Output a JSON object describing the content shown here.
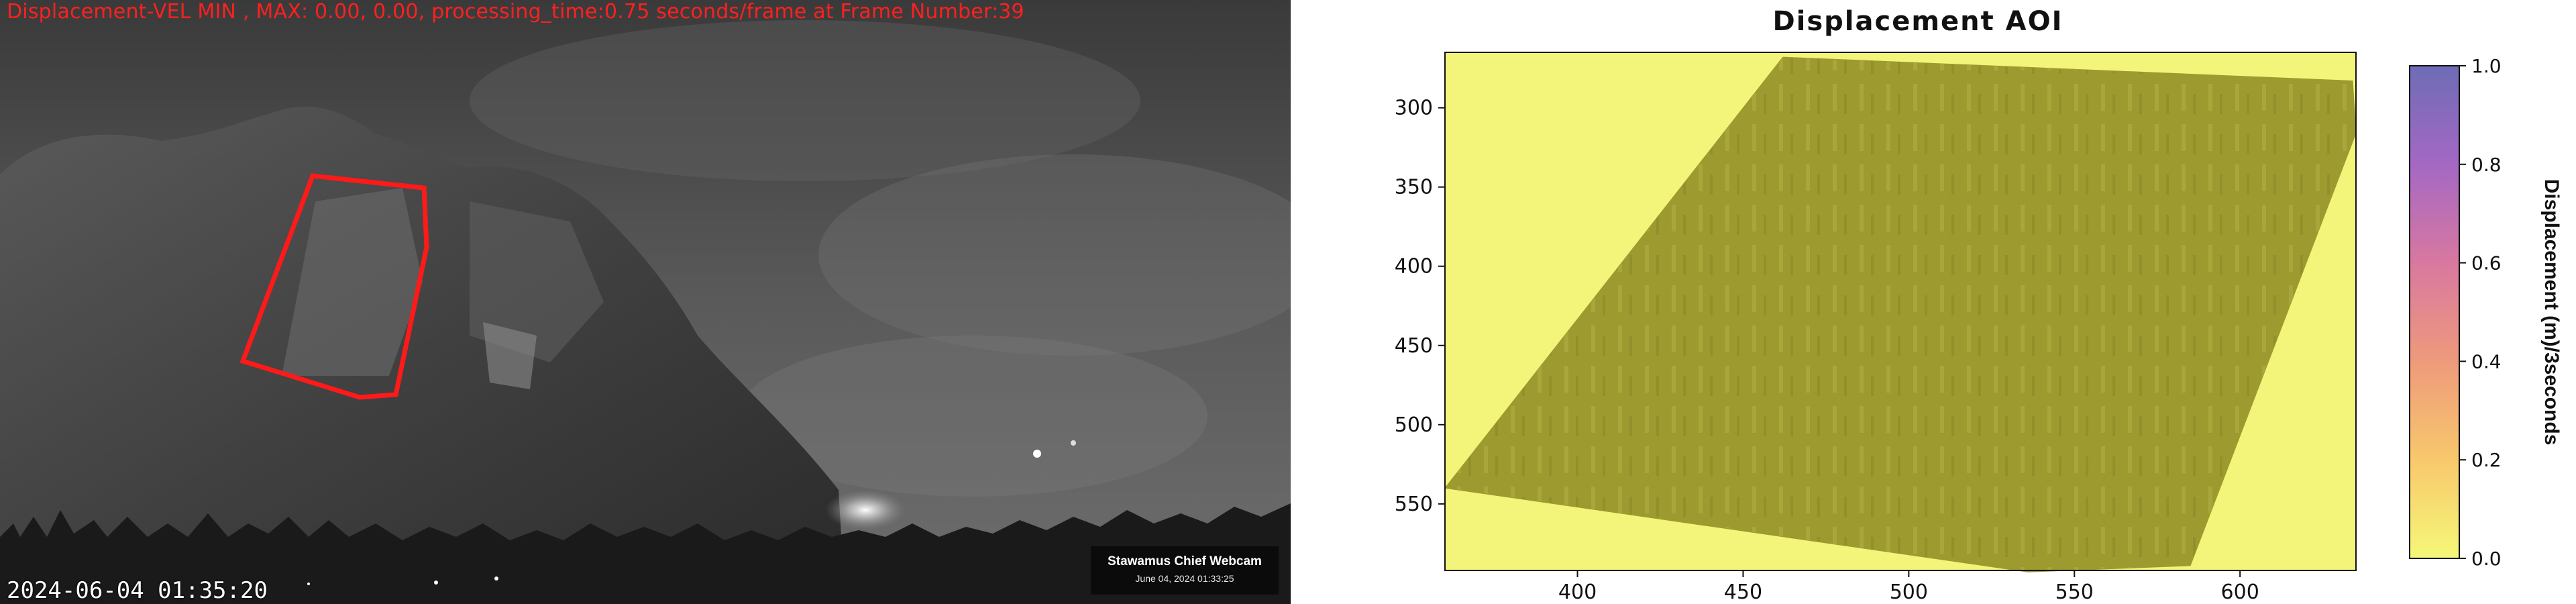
{
  "webcam": {
    "status_text": "Displacement-VEL MIN , MAX: 0.00, 0.00, processing_time:0.75 seconds/frame at Frame Number:39",
    "datetime": "2024-06-04 01:35:20",
    "badge_title": "Stawamus Chief Webcam",
    "badge_subtitle": "June 04, 2024 01:33:25",
    "roi_color": "#ff1a1a"
  },
  "chart_data": {
    "type": "heatmap",
    "title": "Displacement AOI",
    "xlabel": "",
    "ylabel": "",
    "x_ticks": [
      400,
      450,
      500,
      550,
      600
    ],
    "y_ticks": [
      300,
      350,
      400,
      450,
      500,
      550
    ],
    "xlim": [
      360,
      635
    ],
    "ylim": [
      592,
      265
    ],
    "aoi_polygon": [
      [
        462,
        268
      ],
      [
        634,
        283
      ],
      [
        635,
        316
      ],
      [
        585,
        589
      ],
      [
        536,
        593
      ],
      [
        360,
        540
      ]
    ],
    "value_min": 0.0,
    "value_max": 0.0,
    "colorbar": {
      "label": "Displacement (m)/3seconds",
      "ticks": [
        "0.0",
        "0.2",
        "0.4",
        "0.6",
        "0.8",
        "1.0"
      ],
      "range": [
        0.0,
        1.0
      ],
      "colors_low_to_high": [
        "#f5f878",
        "#f8c86c",
        "#ee9a7c",
        "#d878a0",
        "#a468c4",
        "#6e6cb6"
      ]
    },
    "background_color": "#f3f57a",
    "aoi_color": "#9d9b2f"
  }
}
